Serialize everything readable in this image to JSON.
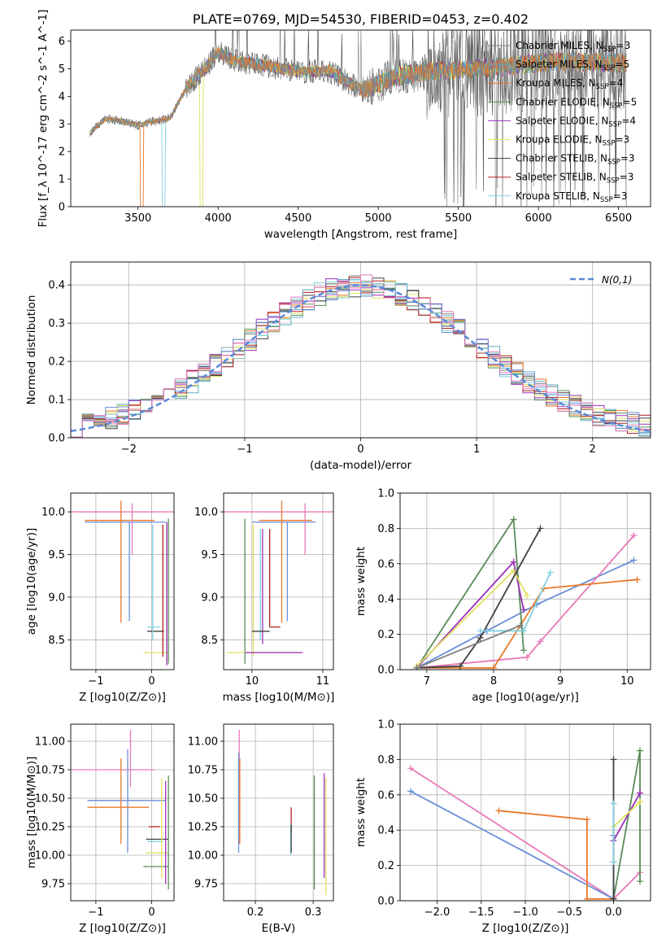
{
  "figure": {
    "title": "PLATE=0769, MJD=54530, FIBERID=0453, z=0.402"
  },
  "colors": {
    "Chabrier MILES": "#808080",
    "Salpeter MILES": "#5aaec6",
    "Kroupa MILES": "#e8792b",
    "Chabrier ELODIE": "#5a8a5a",
    "Salpeter ELODIE": "#9b30b8",
    "Kroupa ELODIE": "#e0e060",
    "Chabrier STELIB": "#404040",
    "Salpeter STELIB": "#b02020",
    "Kroupa STELIB": "#80d0e0",
    "hist_blue": "#6a8fd8",
    "hist_pink": "#e87ab8",
    "normal_curve": "#5a8ad8"
  },
  "chart_data": [
    {
      "id": "spectrum",
      "type": "line",
      "title": "PLATE=0769, MJD=54530, FIBERID=0453, z=0.402",
      "xlabel": "wavelength [Angstrom, rest frame]",
      "ylabel": "Flux [f_λ 10^-17 erg cm^-2 s^-1 A^-1]",
      "xlim": [
        3080,
        6700
      ],
      "ylim": [
        0,
        6.4
      ],
      "xticks": [
        3500,
        4000,
        4500,
        5000,
        5500,
        6000,
        6500
      ],
      "yticks": [
        0,
        1,
        2,
        3,
        4,
        5,
        6
      ],
      "x_range_data": [
        3200,
        6550
      ],
      "grid": false,
      "legend_position": "top-right",
      "continuum": {
        "x": [
          3200,
          3300,
          3400,
          3500,
          3600,
          3700,
          3800,
          3900,
          4000,
          4100,
          4300,
          4500,
          4700,
          4900,
          5100,
          5300,
          5500,
          5700,
          5900,
          6100,
          6300,
          6500
        ],
        "y": [
          2.7,
          3.2,
          3.1,
          2.95,
          3.1,
          3.2,
          4.3,
          4.9,
          5.6,
          5.3,
          5.1,
          4.9,
          4.9,
          4.2,
          4.7,
          4.9,
          4.95,
          5.05,
          5.15,
          5.25,
          5.25,
          5.2
        ]
      },
      "series": [
        {
          "name": "Chabrier MILES",
          "nssp": "3"
        },
        {
          "name": "Salpeter MILES",
          "nssp": "5"
        },
        {
          "name": "Kroupa MILES",
          "nssp": "4"
        },
        {
          "name": "Chabrier ELODIE",
          "nssp": "5"
        },
        {
          "name": "Salpeter ELODIE",
          "nssp": "4"
        },
        {
          "name": "Kroupa ELODIE",
          "nssp": "3"
        },
        {
          "name": "Chabrier STELIB",
          "nssp": "3"
        },
        {
          "name": "Salpeter STELIB",
          "nssp": "3"
        },
        {
          "name": "Kroupa STELIB",
          "nssp": "3"
        }
      ]
    },
    {
      "id": "residuals",
      "type": "histogram",
      "xlabel": "(data-model)/error",
      "ylabel": "Normed distribution",
      "xlim": [
        -2.5,
        2.5
      ],
      "ylim": [
        0,
        0.46
      ],
      "xticks": [
        -2,
        -1,
        0,
        1,
        2
      ],
      "yticks": [
        0.0,
        0.1,
        0.2,
        0.3,
        0.4
      ],
      "grid": true,
      "legend": [
        {
          "name": "N(0,1)",
          "style": "dashed"
        }
      ],
      "legend_position": "top-right",
      "bin_width": 0.1,
      "bin_start": -2.5
    },
    {
      "id": "age_vs_Z",
      "type": "scatter",
      "xlabel": "Z [log10(Z/Z⊙)]",
      "ylabel": "age [log10(age/yr)]",
      "xlim": [
        -1.45,
        0.4
      ],
      "ylim": [
        8.15,
        10.22
      ],
      "xticks": [
        -1,
        0
      ],
      "yticks": [
        8.5,
        9.0,
        9.5,
        10.0
      ],
      "grid": true,
      "points": [
        {
          "c": "hist_blue",
          "x": -1.2,
          "y": 9.88,
          "x0": -1.2,
          "x1": 0.25,
          "y0": 9.88,
          "y1": 9.88
        },
        {
          "c": "hist_pink",
          "x": -1.2,
          "y": 10.0,
          "x0": -1.45,
          "x1": 0.4,
          "y0": 10.0,
          "y1": 10.0
        },
        {
          "c": "Kroupa MILES",
          "x": -1.2,
          "y": 9.9,
          "x0": -1.2,
          "x1": 0.05,
          "y0": 9.9,
          "y1": 9.9
        },
        {
          "c": "Kroupa MILES",
          "x": -0.55,
          "y": 9.45,
          "x0": -0.55,
          "x1": -0.55,
          "y0": 8.7,
          "y1": 10.13
        },
        {
          "c": "hist_blue",
          "x": -0.4,
          "y": 9.3,
          "x0": -0.4,
          "x1": -0.4,
          "y0": 8.72,
          "y1": 9.88
        },
        {
          "c": "hist_pink",
          "x": -0.35,
          "y": 9.75,
          "x0": -0.35,
          "x1": -0.35,
          "y0": 9.5,
          "y1": 10.1
        },
        {
          "c": "Chabrier STELIB",
          "x": 0.02,
          "y": 8.6,
          "x0": -0.08,
          "x1": 0.22,
          "y0": 8.6,
          "y1": 8.6
        },
        {
          "c": "Kroupa STELIB",
          "x": 0.02,
          "y": 8.65,
          "x0": -0.08,
          "x1": 0.15,
          "y0": 8.65,
          "y1": 8.65
        },
        {
          "c": "Kroupa STELIB",
          "x": 0.02,
          "y": 9.2,
          "x0": 0.02,
          "x1": 0.02,
          "y0": 8.5,
          "y1": 9.85
        },
        {
          "c": "Kroupa ELODIE",
          "x": 0.0,
          "y": 8.35,
          "x0": -0.15,
          "x1": 0.3,
          "y0": 8.35,
          "y1": 8.35
        },
        {
          "c": "Chabrier ELODIE",
          "x": 0.3,
          "y": 9.1,
          "x0": 0.3,
          "x1": 0.3,
          "y0": 8.22,
          "y1": 9.92
        },
        {
          "c": "Salpeter ELODIE",
          "x": 0.27,
          "y": 9.1,
          "x0": 0.27,
          "x1": 0.27,
          "y0": 8.2,
          "y1": 9.88
        },
        {
          "c": "Salpeter STELIB",
          "x": 0.2,
          "y": 9.0,
          "x0": 0.2,
          "x1": 0.2,
          "y0": 8.3,
          "y1": 9.85
        }
      ]
    },
    {
      "id": "age_vs_mass",
      "type": "scatter",
      "xlabel": "mass [log10(M/M⊙)]",
      "ylabel": "",
      "xlim": [
        9.6,
        11.15
      ],
      "ylim": [
        8.15,
        10.22
      ],
      "xticks": [
        10,
        11
      ],
      "yticks": [
        8.5,
        9.0,
        9.5,
        10.0
      ],
      "grid": true,
      "points": [
        {
          "c": "hist_pink",
          "x": 10.6,
          "y": 10.0,
          "x0": 9.6,
          "x1": 11.15,
          "y0": 10.0,
          "y1": 10.0
        },
        {
          "c": "hist_blue",
          "x": 10.5,
          "y": 9.88,
          "x0": 10.0,
          "x1": 10.9,
          "y0": 9.88,
          "y1": 9.88
        },
        {
          "c": "Kroupa MILES",
          "x": 10.42,
          "y": 9.9,
          "x0": 10.1,
          "x1": 10.85,
          "y0": 9.9,
          "y1": 9.9
        },
        {
          "c": "Kroupa MILES",
          "x": 10.42,
          "y": 9.45,
          "x0": 10.42,
          "x1": 10.42,
          "y0": 8.7,
          "y1": 10.13
        },
        {
          "c": "hist_pink",
          "x": 10.75,
          "y": 9.75,
          "x0": 10.75,
          "x1": 10.75,
          "y0": 9.5,
          "y1": 10.1
        },
        {
          "c": "hist_blue",
          "x": 10.5,
          "y": 9.3,
          "x0": 10.5,
          "x1": 10.5,
          "y0": 8.72,
          "y1": 9.88
        },
        {
          "c": "Chabrier ELODIE",
          "x": 9.9,
          "y": 9.1,
          "x0": 9.9,
          "x1": 9.9,
          "y0": 8.22,
          "y1": 9.92
        },
        {
          "c": "Kroupa ELODIE",
          "x": 10.02,
          "y": 9.1,
          "x0": 10.02,
          "x1": 10.02,
          "y0": 8.3,
          "y1": 9.85
        },
        {
          "c": "Salpeter ELODIE",
          "x": 10.15,
          "y": 9.1,
          "x0": 10.15,
          "x1": 10.15,
          "y0": 8.45,
          "y1": 9.8
        },
        {
          "c": "Kroupa STELIB",
          "x": 10.12,
          "y": 9.1,
          "x0": 10.12,
          "x1": 10.12,
          "y0": 8.5,
          "y1": 9.8
        },
        {
          "c": "Salpeter STELIB",
          "x": 10.25,
          "y": 9.1,
          "x0": 10.25,
          "x1": 10.25,
          "y0": 8.65,
          "y1": 9.8
        },
        {
          "c": "Chabrier STELIB",
          "x": 10.12,
          "y": 8.6,
          "x0": 10.0,
          "x1": 10.25,
          "y0": 8.6,
          "y1": 8.6
        },
        {
          "c": "Salpeter STELIB",
          "x": 10.3,
          "y": 8.65,
          "x0": 10.25,
          "x1": 10.4,
          "y0": 8.65,
          "y1": 8.65
        },
        {
          "c": "Kroupa ELODIE",
          "x": 9.9,
          "y": 8.35,
          "x0": 9.65,
          "x1": 10.7,
          "y0": 8.35,
          "y1": 8.35
        },
        {
          "c": "Salpeter ELODIE",
          "x": 10.3,
          "y": 8.35,
          "x0": 9.9,
          "x1": 10.72,
          "y0": 8.35,
          "y1": 8.35
        }
      ]
    },
    {
      "id": "weight_vs_age",
      "type": "line",
      "xlabel": "age [log10(age/yr)]",
      "ylabel": "mass weight",
      "xlim": [
        6.6,
        10.35
      ],
      "ylim": [
        0,
        1.0
      ],
      "xticks": [
        7,
        8,
        9,
        10
      ],
      "yticks": [
        0.0,
        0.2,
        0.4,
        0.6,
        0.8,
        1.0
      ],
      "grid": true,
      "series": [
        {
          "c": "hist_blue",
          "x": [
            6.85,
            7.9,
            8.65,
            10.1
          ],
          "y": [
            0.01,
            0.22,
            0.37,
            0.62
          ]
        },
        {
          "c": "hist_pink",
          "x": [
            6.85,
            8.5,
            8.7,
            10.1
          ],
          "y": [
            0.01,
            0.07,
            0.16,
            0.76
          ]
        },
        {
          "c": "Kroupa MILES",
          "x": [
            6.85,
            8.0,
            8.75,
            10.15
          ],
          "y": [
            0.01,
            0.01,
            0.46,
            0.51
          ]
        },
        {
          "c": "Chabrier ELODIE",
          "x": [
            6.85,
            8.3,
            8.45
          ],
          "y": [
            0.01,
            0.85,
            0.11
          ]
        },
        {
          "c": "Salpeter ELODIE",
          "x": [
            6.85,
            8.3,
            8.45
          ],
          "y": [
            0.01,
            0.61,
            0.34
          ]
        },
        {
          "c": "Kroupa ELODIE",
          "x": [
            6.85,
            8.3,
            8.5
          ],
          "y": [
            0.02,
            0.56,
            0.42
          ]
        },
        {
          "c": "Chabrier STELIB",
          "x": [
            6.85,
            7.5,
            7.8,
            8.7
          ],
          "y": [
            0.01,
            0.02,
            0.18,
            0.8
          ]
        },
        {
          "c": "Kroupa STELIB",
          "x": [
            7.8,
            8.45,
            8.85
          ],
          "y": [
            0.22,
            0.22,
            0.55
          ]
        },
        {
          "c": "Chabrier MILES",
          "x": [
            6.85,
            8.4
          ],
          "y": [
            0.01,
            0.25
          ]
        }
      ]
    },
    {
      "id": "mass_vs_Z",
      "type": "scatter",
      "xlabel": "Z [log10(Z/Z⊙)]",
      "ylabel": "mass [log10(M/M⊙)]",
      "xlim": [
        -1.45,
        0.4
      ],
      "ylim": [
        9.6,
        11.15
      ],
      "xticks": [
        -1,
        0
      ],
      "yticks": [
        9.75,
        10.0,
        10.25,
        10.5,
        10.75,
        11.0
      ],
      "grid": true,
      "points": [
        {
          "c": "hist_pink",
          "x": -0.35,
          "y": 10.75,
          "x0": -1.45,
          "x1": 0.05,
          "y0": 10.75,
          "y1": 10.75
        },
        {
          "c": "hist_pink",
          "x": -0.38,
          "y": 10.85,
          "x0": -0.38,
          "x1": -0.38,
          "y0": 10.6,
          "y1": 11.1
        },
        {
          "c": "hist_blue",
          "x": -1.1,
          "y": 10.48,
          "x0": -1.15,
          "x1": 0.25,
          "y0": 10.48,
          "y1": 10.48
        },
        {
          "c": "hist_blue",
          "x": -0.43,
          "y": 10.48,
          "x0": -0.43,
          "x1": -0.43,
          "y0": 10.02,
          "y1": 10.93
        },
        {
          "c": "Kroupa MILES",
          "x": -0.55,
          "y": 10.42,
          "x0": -1.15,
          "x1": -0.05,
          "y0": 10.42,
          "y1": 10.42
        },
        {
          "c": "Kroupa MILES",
          "x": -0.55,
          "y": 10.42,
          "x0": -0.55,
          "x1": -0.55,
          "y0": 10.1,
          "y1": 10.85
        },
        {
          "c": "Chabrier STELIB",
          "x": 0.05,
          "y": 10.14,
          "x0": -0.1,
          "x1": 0.3,
          "y0": 10.14,
          "y1": 10.14
        },
        {
          "c": "Kroupa STELIB",
          "x": 0.05,
          "y": 10.12,
          "x0": -0.08,
          "x1": 0.2,
          "y0": 10.12,
          "y1": 10.12
        },
        {
          "c": "Salpeter STELIB",
          "x": 0.05,
          "y": 10.25,
          "x0": -0.05,
          "x1": 0.15,
          "y0": 10.25,
          "y1": 10.25
        },
        {
          "c": "Kroupa ELODIE",
          "x": 0.1,
          "y": 10.02,
          "x0": -0.1,
          "x1": 0.3,
          "y0": 10.02,
          "y1": 10.02
        },
        {
          "c": "Chabrier ELODIE",
          "x": 0.05,
          "y": 9.9,
          "x0": -0.15,
          "x1": 0.3,
          "y0": 9.9,
          "y1": 9.9
        },
        {
          "c": "Chabrier ELODIE",
          "x": 0.3,
          "y": 10.2,
          "x0": 0.3,
          "x1": 0.3,
          "y0": 9.7,
          "y1": 10.7
        },
        {
          "c": "Salpeter ELODIE",
          "x": 0.25,
          "y": 10.2,
          "x0": 0.25,
          "x1": 0.25,
          "y0": 9.75,
          "y1": 10.65
        },
        {
          "c": "Kroupa ELODIE",
          "x": 0.18,
          "y": 10.2,
          "x0": 0.18,
          "x1": 0.18,
          "y0": 9.8,
          "y1": 10.68
        }
      ]
    },
    {
      "id": "mass_vs_ebv",
      "type": "scatter",
      "xlabel": "E(B-V)",
      "ylabel": "",
      "xlim": [
        0.145,
        0.335
      ],
      "ylim": [
        9.6,
        11.15
      ],
      "xticks": [
        0.2,
        0.3
      ],
      "yticks": [
        9.75,
        10.0,
        10.25,
        10.5,
        10.75,
        11.0
      ],
      "grid": true,
      "points": [
        {
          "c": "hist_pink",
          "x": 0.172,
          "y": 10.6,
          "x0": 0.172,
          "x1": 0.172,
          "y0": 10.1,
          "y1": 11.1
        },
        {
          "c": "Kroupa MILES",
          "x": 0.173,
          "y": 10.42,
          "x0": 0.173,
          "x1": 0.173,
          "y0": 10.1,
          "y1": 10.85
        },
        {
          "c": "hist_blue",
          "x": 0.171,
          "y": 10.4,
          "x0": 0.171,
          "x1": 0.171,
          "y0": 10.02,
          "y1": 10.9
        },
        {
          "c": "Salpeter STELIB",
          "x": 0.262,
          "y": 10.3,
          "x0": 0.262,
          "x1": 0.262,
          "y0": 10.2,
          "y1": 10.42
        },
        {
          "c": "Kroupa STELIB",
          "x": 0.261,
          "y": 10.12,
          "x0": 0.261,
          "x1": 0.261,
          "y0": 10.0,
          "y1": 10.28
        },
        {
          "c": "Chabrier STELIB",
          "x": 0.262,
          "y": 10.14,
          "x0": 0.262,
          "x1": 0.262,
          "y0": 10.02,
          "y1": 10.27
        },
        {
          "c": "Chabrier ELODIE",
          "x": 0.302,
          "y": 10.2,
          "x0": 0.302,
          "x1": 0.302,
          "y0": 9.7,
          "y1": 10.7
        },
        {
          "c": "Salpeter ELODIE",
          "x": 0.319,
          "y": 10.2,
          "x0": 0.319,
          "x1": 0.319,
          "y0": 9.8,
          "y1": 10.72
        },
        {
          "c": "Kroupa ELODIE",
          "x": 0.322,
          "y": 10.2,
          "x0": 0.322,
          "x1": 0.322,
          "y0": 9.65,
          "y1": 10.68
        }
      ]
    },
    {
      "id": "weight_vs_Z",
      "type": "line",
      "xlabel": "Z [log10(Z/Z⊙)]",
      "ylabel": "mass weight",
      "xlim": [
        -2.42,
        0.42
      ],
      "ylim": [
        0,
        1.0
      ],
      "xticks": [
        -2.0,
        -1.5,
        -1.0,
        -0.5,
        0.0
      ],
      "yticks": [
        0.0,
        0.2,
        0.4,
        0.6,
        0.8,
        1.0
      ],
      "grid": true,
      "series": [
        {
          "c": "hist_pink",
          "x": [
            -2.3,
            0.0,
            0.3
          ],
          "y": [
            0.75,
            0.01,
            0.16
          ]
        },
        {
          "c": "hist_blue",
          "x": [
            -2.3,
            0.0,
            0.0
          ],
          "y": [
            0.62,
            0.01,
            0.37
          ]
        },
        {
          "c": "Kroupa MILES",
          "x": [
            -1.3,
            -0.3,
            -0.3,
            0.0
          ],
          "y": [
            0.51,
            0.46,
            0.01,
            0.01
          ]
        },
        {
          "c": "Chabrier ELODIE",
          "x": [
            0.0,
            0.3,
            0.3
          ],
          "y": [
            0.01,
            0.85,
            0.11
          ]
        },
        {
          "c": "Salpeter ELODIE",
          "x": [
            0.0,
            0.3,
            0.3
          ],
          "y": [
            0.34,
            0.61,
            0.61
          ]
        },
        {
          "c": "Kroupa ELODIE",
          "x": [
            0.0,
            0.3,
            0.3
          ],
          "y": [
            0.42,
            0.56,
            0.56
          ]
        },
        {
          "c": "Chabrier STELIB",
          "x": [
            0.0,
            0.0
          ],
          "y": [
            0.01,
            0.8
          ]
        },
        {
          "c": "Kroupa STELIB",
          "x": [
            0.0,
            0.0,
            0.0
          ],
          "y": [
            0.22,
            0.55,
            0.22
          ]
        }
      ]
    }
  ]
}
